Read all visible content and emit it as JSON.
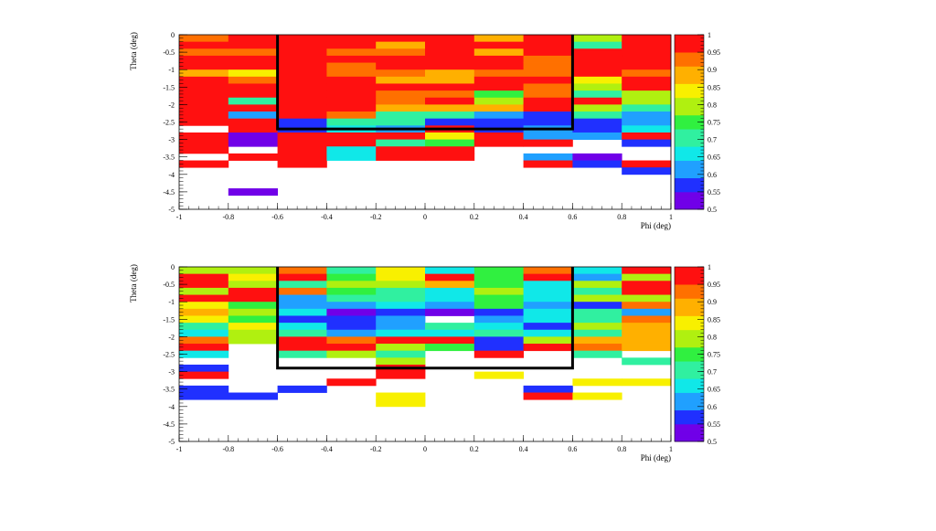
{
  "colors": {
    "palette": [
      "#7000e8",
      "#2030ff",
      "#20a0ff",
      "#10e8e8",
      "#30f0a0",
      "#30f040",
      "#b0f010",
      "#f8f000",
      "#ffb000",
      "#ff7000",
      "#ff1010"
    ]
  },
  "chart_data": [
    {
      "type": "heatmap",
      "title": "",
      "xlabel": "Phi (deg)",
      "ylabel": "Theta (deg)",
      "xlim": [
        -1,
        1
      ],
      "ylim": [
        -5,
        0
      ],
      "x_ticks": [
        "-1",
        "-0.8",
        "-0.6",
        "-0.4",
        "-0.2",
        "0",
        "0.2",
        "0.4",
        "0.6",
        "0.8",
        "1"
      ],
      "y_ticks": [
        "0",
        "-0.5",
        "-1",
        "-1.5",
        "-2",
        "-2.5",
        "-3",
        "-3.5",
        "-4",
        "-4.5",
        "-5"
      ],
      "colorbar": {
        "range": [
          0.5,
          1
        ],
        "ticks": [
          "1",
          "0.95",
          "0.9",
          "0.85",
          "0.8",
          "0.75",
          "0.7",
          "0.65",
          "0.6",
          "0.55",
          "0.5"
        ]
      },
      "x_edges": [
        -1,
        -0.8,
        -0.6,
        -0.4,
        -0.2,
        0,
        0.2,
        0.4,
        0.6,
        0.8,
        1
      ],
      "y_bin_width": 0.2,
      "region": {
        "phi": [
          -0.6,
          0.6
        ],
        "theta": [
          -2.7,
          0
        ]
      },
      "columns": [
        [
          0.93,
          1,
          0.95,
          1,
          1,
          0.87,
          1,
          1,
          1,
          1,
          1,
          1,
          1,
          null,
          1,
          1,
          1,
          null,
          1,
          null,
          null,
          null,
          null,
          null,
          null
        ],
        [
          1,
          1,
          0.95,
          1,
          1,
          0.85,
          0.92,
          1,
          1,
          0.72,
          1,
          0.62,
          1,
          1,
          0.53,
          0.52,
          null,
          0.98,
          null,
          null,
          null,
          null,
          0.52,
          null,
          null
        ],
        [
          1,
          1,
          1,
          1,
          1,
          1,
          1,
          1,
          1,
          1,
          1,
          1,
          0.55,
          0.55,
          1,
          1,
          1,
          1,
          1,
          null,
          null,
          null,
          null,
          null,
          null
        ],
        [
          1,
          1,
          0.95,
          0.97,
          0.95,
          0.95,
          0.98,
          1,
          1,
          0.97,
          1,
          0.93,
          0.7,
          0.65,
          1,
          1,
          0.67,
          0.67,
          null,
          null,
          null,
          null,
          null,
          null,
          null
        ],
        [
          1,
          0.9,
          0.92,
          1,
          0.97,
          0.93,
          0.9,
          1,
          0.95,
          0.93,
          0.88,
          0.72,
          0.7,
          0.6,
          1,
          0.7,
          1,
          1,
          null,
          null,
          null,
          null,
          null,
          null,
          null
        ],
        [
          1,
          1,
          1,
          1,
          1,
          0.9,
          0.88,
          1,
          0.93,
          1,
          0.9,
          0.72,
          0.57,
          1,
          0.82,
          0.75,
          1,
          1,
          null,
          null,
          null,
          null,
          null,
          null,
          null
        ],
        [
          0.88,
          1,
          0.87,
          1,
          1,
          0.93,
          1,
          1,
          0.75,
          0.8,
          0.87,
          0.6,
          0.55,
          0.55,
          1,
          1,
          null,
          null,
          null,
          null,
          null,
          null,
          null,
          null,
          null
        ],
        [
          1,
          1,
          1,
          0.93,
          0.93,
          0.93,
          1,
          0.92,
          0.95,
          1,
          1,
          0.57,
          0.57,
          0.62,
          0.6,
          1,
          null,
          0.63,
          1,
          null,
          null,
          null,
          null,
          null,
          null
        ],
        [
          0.78,
          0.72,
          1,
          1,
          1,
          1,
          0.83,
          0.8,
          0.72,
          1,
          0.8,
          0.7,
          0.58,
          0.57,
          0.6,
          null,
          null,
          0.53,
          0.58,
          null,
          null,
          null,
          null,
          null,
          null
        ],
        [
          1,
          1,
          1,
          1,
          1,
          0.93,
          1,
          1,
          0.8,
          0.78,
          0.7,
          0.6,
          0.62,
          0.65,
          1,
          0.58,
          null,
          null,
          1,
          0.55,
          null,
          null,
          null,
          null,
          null
        ]
      ]
    },
    {
      "type": "heatmap",
      "title": "",
      "xlabel": "Phi (deg)",
      "ylabel": "Theta (deg)",
      "xlim": [
        -1,
        1
      ],
      "ylim": [
        -5,
        0
      ],
      "x_ticks": [
        "-1",
        "-0.8",
        "-0.6",
        "-0.4",
        "-0.2",
        "0",
        "0.2",
        "0.4",
        "0.6",
        "0.8",
        "1"
      ],
      "y_ticks": [
        "0",
        "-0.5",
        "-1",
        "-1.5",
        "-2",
        "-2.5",
        "-3",
        "-3.5",
        "-4",
        "-4.5",
        "-5"
      ],
      "colorbar": {
        "range": [
          0.5,
          1
        ],
        "ticks": [
          "1",
          "0.95",
          "0.9",
          "0.85",
          "0.8",
          "0.75",
          "0.7",
          "0.65",
          "0.6",
          "0.55",
          "0.5"
        ]
      },
      "x_edges": [
        -1,
        -0.8,
        -0.6,
        -0.4,
        -0.2,
        0,
        0.2,
        0.4,
        0.6,
        0.8,
        1
      ],
      "y_bin_width": 0.2,
      "region": {
        "phi": [
          -0.6,
          0.6
        ],
        "theta": [
          -2.9,
          0
        ]
      },
      "columns": [
        [
          0.8,
          1,
          1,
          0.78,
          1,
          0.82,
          0.88,
          0.85,
          0.72,
          0.68,
          0.95,
          1,
          0.64,
          null,
          0.55,
          1,
          null,
          0.55,
          0.55,
          null,
          null,
          null,
          null,
          null,
          null
        ],
        [
          0.8,
          0.82,
          0.78,
          1,
          1,
          0.75,
          0.78,
          0.77,
          0.82,
          0.8,
          0.78,
          null,
          null,
          null,
          null,
          null,
          null,
          null,
          0.55,
          null,
          null,
          null,
          null,
          null,
          null
        ],
        [
          0.92,
          1,
          0.7,
          0.95,
          0.62,
          0.62,
          0.65,
          0.55,
          0.65,
          0.72,
          1,
          1,
          0.7,
          null,
          null,
          null,
          null,
          0.55,
          null,
          null,
          null,
          null,
          null,
          null,
          null
        ],
        [
          0.72,
          0.75,
          0.78,
          0.75,
          0.72,
          0.62,
          0.52,
          0.55,
          0.55,
          0.6,
          0.95,
          1,
          0.8,
          null,
          null,
          null,
          1,
          null,
          null,
          null,
          null,
          null,
          null,
          null,
          null
        ],
        [
          0.82,
          0.85,
          0.78,
          0.7,
          0.7,
          0.65,
          0.55,
          0.62,
          0.62,
          0.65,
          1,
          0.8,
          0.72,
          0.78,
          1,
          1,
          null,
          null,
          0.85,
          0.85,
          null,
          null,
          null,
          null,
          null
        ],
        [
          0.65,
          1,
          0.88,
          0.68,
          0.68,
          0.6,
          0.52,
          null,
          0.7,
          0.68,
          1,
          0.73,
          null,
          null,
          null,
          null,
          null,
          null,
          null,
          null,
          null,
          null,
          null,
          null,
          null
        ],
        [
          0.75,
          0.75,
          0.75,
          0.78,
          0.75,
          0.75,
          0.55,
          0.62,
          0.65,
          0.72,
          0.55,
          0.55,
          1,
          null,
          null,
          0.85,
          null,
          null,
          null,
          null,
          null,
          null,
          null,
          null,
          null
        ],
        [
          0.92,
          1,
          0.67,
          0.67,
          0.66,
          0.62,
          0.65,
          0.68,
          0.55,
          0.65,
          0.78,
          1,
          null,
          null,
          null,
          null,
          null,
          0.55,
          1,
          null,
          null,
          null,
          null,
          null,
          null
        ],
        [
          0.65,
          0.62,
          0.78,
          0.7,
          0.8,
          0.55,
          0.72,
          0.72,
          0.8,
          0.72,
          0.9,
          0.95,
          0.7,
          null,
          null,
          null,
          0.85,
          null,
          0.85,
          null,
          null,
          null,
          null,
          null,
          null
        ],
        [
          1,
          0.8,
          1,
          1,
          0.8,
          0.92,
          0.6,
          0.95,
          0.88,
          0.9,
          0.9,
          0.9,
          null,
          0.7,
          null,
          null,
          0.85,
          null,
          null,
          null,
          null,
          null,
          null,
          null,
          null
        ]
      ]
    }
  ]
}
